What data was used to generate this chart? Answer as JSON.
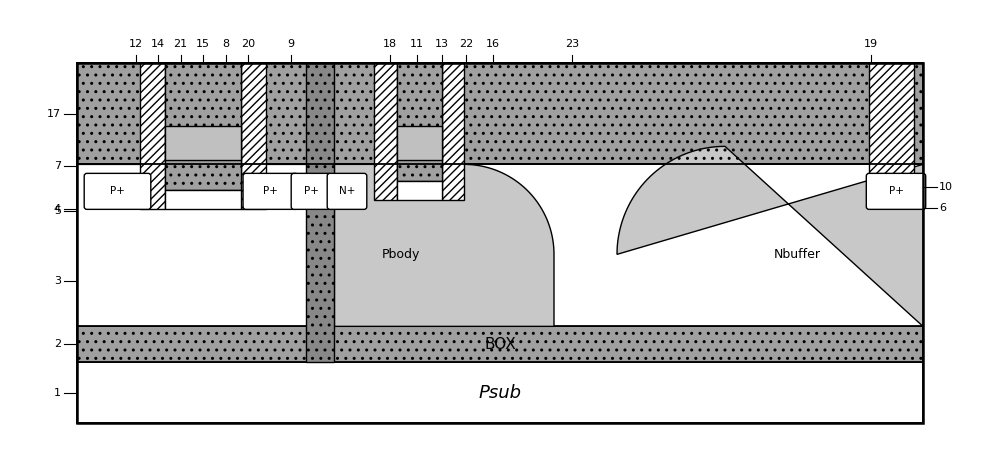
{
  "fig_width": 10.0,
  "fig_height": 4.57,
  "dpi": 100,
  "black": "#000000",
  "white": "#ffffff",
  "stipple_dark": "#a0a0a0",
  "stipple_light": "#c8c8c8",
  "psub_text": "Psub",
  "box_text": "BOX",
  "pbody_text": "Pbody",
  "nbuffer_text": "Nbuffer",
  "top_labels": [
    [
      "12",
      9.5
    ],
    [
      "14",
      12.0
    ],
    [
      "21",
      14.5
    ],
    [
      "15",
      17.0
    ],
    [
      "8",
      19.5
    ],
    [
      "20",
      22.0
    ],
    [
      "9",
      27.5
    ],
    [
      "18",
      38.5
    ],
    [
      "11",
      41.5
    ],
    [
      "13",
      44.5
    ],
    [
      "22",
      47.5
    ],
    [
      "16",
      50.5
    ],
    [
      "23",
      60.0
    ],
    [
      "19",
      92.0
    ]
  ],
  "left_labels": [
    [
      "17",
      79.5
    ],
    [
      "7",
      71.5
    ],
    [
      "5",
      67.0
    ],
    [
      "4",
      54.0
    ],
    [
      "3",
      39.0
    ],
    [
      "2",
      22.0
    ],
    [
      "1",
      9.5
    ]
  ],
  "right_labels": [
    [
      "10",
      70.0
    ],
    [
      "6",
      64.5
    ]
  ]
}
